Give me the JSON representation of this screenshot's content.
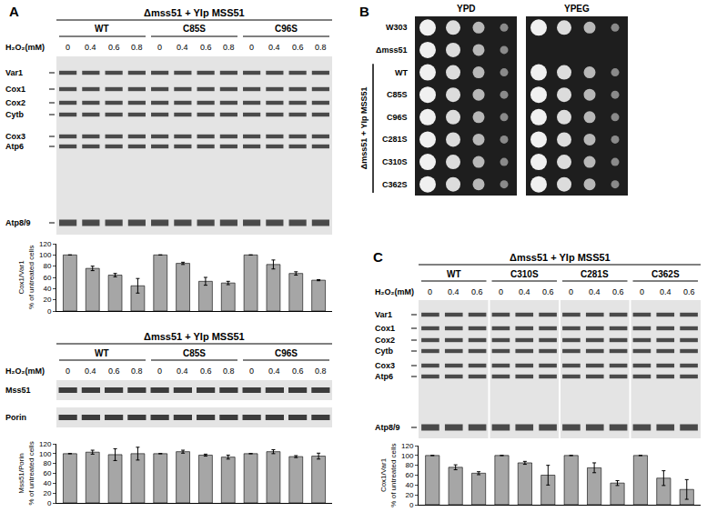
{
  "chart_data": [
    {
      "type": "bar",
      "y_label": [
        "Cox1/Var1",
        "% of untreated cells"
      ],
      "categories": [
        null,
        null,
        null,
        null,
        null,
        null,
        null,
        null,
        null,
        null,
        null,
        null
      ],
      "values": [
        100,
        76,
        64,
        45,
        100,
        85,
        53,
        50,
        100,
        83,
        67,
        55
      ],
      "errors": [
        0,
        4,
        3,
        13,
        0,
        2,
        7,
        3,
        0,
        8,
        3,
        1
      ],
      "ylim": [
        0,
        120
      ],
      "yticks": [
        0,
        20,
        40,
        60,
        80,
        100,
        120
      ],
      "color": "#a6a6a6",
      "grid": false,
      "tick_labels": "y"
    },
    {
      "type": "bar",
      "y_label": [
        "Mss51/Porin",
        "% of untreated cells"
      ],
      "categories": [
        null,
        null,
        null,
        null,
        null,
        null,
        null,
        null,
        null,
        null,
        null,
        null
      ],
      "values": [
        100,
        103,
        98,
        100,
        100,
        104,
        97,
        93,
        100,
        104,
        94,
        95
      ],
      "errors": [
        0,
        4,
        12,
        13,
        0,
        3,
        2,
        4,
        0,
        4,
        2,
        6
      ],
      "ylim": [
        0,
        120
      ],
      "yticks": [
        0,
        20,
        40,
        60,
        80,
        100,
        120
      ],
      "color": "#a6a6a6",
      "grid": false,
      "tick_labels": "y"
    },
    {
      "type": "bar",
      "y_label": [
        "Cox1/Var1",
        "% of untreated cells"
      ],
      "categories": [
        null,
        null,
        null,
        null,
        null,
        null,
        null,
        null,
        null,
        null,
        null,
        null
      ],
      "values": [
        100,
        76,
        64,
        100,
        85,
        60,
        100,
        75,
        44,
        100,
        54,
        31
      ],
      "errors": [
        0,
        5,
        3,
        0,
        3,
        20,
        0,
        10,
        5,
        0,
        15,
        20
      ],
      "ylim": [
        0,
        120
      ],
      "yticks": [
        0,
        20,
        40,
        60,
        80,
        100,
        120
      ],
      "color": "#a6a6a6",
      "grid": false,
      "tick_labels": "y"
    }
  ],
  "panels": {
    "A": {
      "label": "A",
      "title": "Δmss51 + YIp MSS51",
      "groups": [
        "WT",
        "C85S",
        "C96S"
      ],
      "treatment_label": "H₂O₂(mM)",
      "doses": [
        "0",
        "0.4",
        "0.6",
        "0.8"
      ],
      "bands": [
        "Var1",
        "Cox1",
        "Cox2",
        "Cytb",
        "Cox3",
        "Atp6",
        "Atp8/9"
      ],
      "blot": {
        "title": "Δmss51 + YIp MSS51",
        "groups": [
          "WT",
          "C85S",
          "C96S"
        ],
        "treatment_label": "H₂O₂(mM)",
        "doses": [
          "0",
          "0.4",
          "0.6",
          "0.8"
        ],
        "bands": [
          "Mss51",
          "Porin"
        ]
      }
    },
    "B": {
      "label": "B",
      "media": [
        "YPD",
        "YPEG"
      ],
      "strains": [
        {
          "name": "W303",
          "growth": [
            true,
            true
          ]
        },
        {
          "name": "Δmss51",
          "growth": [
            true,
            false
          ]
        }
      ],
      "bracket": "Δmss51 + YIp MSS51",
      "bracket_strains": [
        {
          "name": "WT",
          "growth": [
            true,
            true
          ]
        },
        {
          "name": "C85S",
          "growth": [
            true,
            true
          ]
        },
        {
          "name": "C96S",
          "growth": [
            true,
            true
          ]
        },
        {
          "name": "C281S",
          "growth": [
            true,
            true
          ]
        },
        {
          "name": "C310S",
          "growth": [
            true,
            true
          ]
        },
        {
          "name": "C362S",
          "growth": [
            true,
            true
          ]
        }
      ]
    },
    "C": {
      "label": "C",
      "title": "Δmss51 + YIp MSS51",
      "groups": [
        "WT",
        "C310S",
        "C281S",
        "C362S"
      ],
      "treatment_label": "H₂O₂(mM)",
      "doses": [
        "0",
        "0.4",
        "0.6"
      ],
      "bands": [
        "Var1",
        "Cox1",
        "Cox2",
        "Cytb",
        "Cox3",
        "Atp6",
        "Atp8/9"
      ]
    }
  }
}
